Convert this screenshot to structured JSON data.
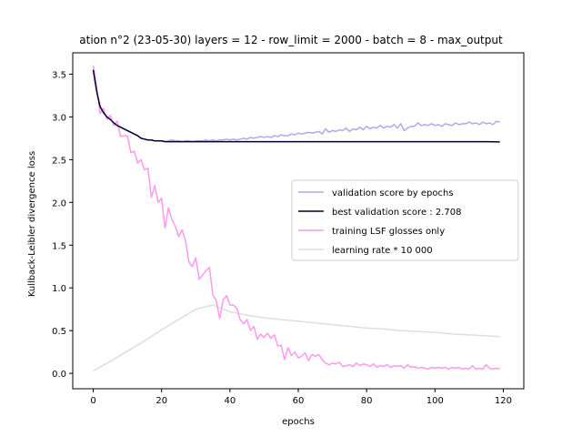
{
  "chart_data": {
    "type": "line",
    "title": "ation n°2 (23-05-30) layers = 12 - row_limit = 2000 - batch = 8 - max_output",
    "xlabel": "epochs",
    "ylabel": "Kullback-Leibler divergence loss",
    "xlim": [
      -6,
      126
    ],
    "ylim": [
      -0.18,
      3.75
    ],
    "xticks": [
      0,
      20,
      40,
      60,
      80,
      100,
      120
    ],
    "yticks": [
      0.0,
      0.5,
      1.0,
      1.5,
      2.0,
      2.5,
      3.0,
      3.5
    ],
    "xtick_labels": [
      "0",
      "20",
      "40",
      "60",
      "80",
      "100",
      "120"
    ],
    "ytick_labels": [
      "0.0",
      "0.5",
      "1.0",
      "1.5",
      "2.0",
      "2.5",
      "3.0",
      "3.5"
    ],
    "grid": false,
    "legend_position": "center-right",
    "series": [
      {
        "name": "validation score by epochs",
        "color": "#aaaaee",
        "x": [
          0,
          1,
          2,
          3,
          4,
          5,
          6,
          7,
          8,
          9,
          10,
          11,
          12,
          13,
          14,
          15,
          16,
          17,
          18,
          19,
          20,
          21,
          22,
          23,
          24,
          25,
          26,
          27,
          28,
          29,
          30,
          31,
          32,
          33,
          34,
          35,
          36,
          37,
          38,
          39,
          40,
          41,
          42,
          43,
          44,
          45,
          46,
          47,
          48,
          49,
          50,
          51,
          52,
          53,
          54,
          55,
          56,
          57,
          58,
          59,
          60,
          61,
          62,
          63,
          64,
          65,
          66,
          67,
          68,
          69,
          70,
          71,
          72,
          73,
          74,
          75,
          76,
          77,
          78,
          79,
          80,
          81,
          82,
          83,
          84,
          85,
          86,
          87,
          88,
          89,
          90,
          91,
          92,
          93,
          94,
          95,
          96,
          97,
          98,
          99,
          100,
          101,
          102,
          103,
          104,
          105,
          106,
          107,
          108,
          109,
          110,
          111,
          112,
          113,
          114,
          115,
          116,
          117,
          118,
          119
        ],
        "y": [
          3.55,
          3.3,
          3.12,
          3.05,
          3.0,
          2.97,
          2.93,
          2.9,
          2.88,
          2.86,
          2.84,
          2.82,
          2.8,
          2.78,
          2.75,
          2.74,
          2.73,
          2.73,
          2.72,
          2.72,
          2.72,
          2.71,
          2.72,
          2.73,
          2.72,
          2.72,
          2.71,
          2.72,
          2.72,
          2.71,
          2.72,
          2.72,
          2.72,
          2.73,
          2.72,
          2.73,
          2.72,
          2.73,
          2.73,
          2.74,
          2.73,
          2.74,
          2.73,
          2.74,
          2.75,
          2.74,
          2.76,
          2.75,
          2.76,
          2.77,
          2.76,
          2.77,
          2.76,
          2.78,
          2.77,
          2.79,
          2.78,
          2.78,
          2.8,
          2.79,
          2.81,
          2.8,
          2.81,
          2.82,
          2.81,
          2.82,
          2.83,
          2.8,
          2.86,
          2.82,
          2.84,
          2.83,
          2.85,
          2.84,
          2.87,
          2.83,
          2.86,
          2.85,
          2.88,
          2.85,
          2.89,
          2.86,
          2.88,
          2.87,
          2.9,
          2.87,
          2.89,
          2.88,
          2.91,
          2.87,
          2.92,
          2.84,
          2.87,
          2.89,
          2.89,
          2.93,
          2.9,
          2.91,
          2.9,
          2.92,
          2.9,
          2.91,
          2.89,
          2.92,
          2.91,
          2.9,
          2.93,
          2.91,
          2.92,
          2.92,
          2.94,
          2.92,
          2.93,
          2.91,
          2.94,
          2.92,
          2.93,
          2.91,
          2.95,
          2.94
        ]
      },
      {
        "name": "best validation score : 2.708",
        "color": "#000033",
        "x": [
          0,
          1,
          2,
          3,
          4,
          5,
          6,
          7,
          8,
          9,
          10,
          11,
          12,
          13,
          14,
          15,
          16,
          17,
          18,
          19,
          20,
          21,
          22,
          23,
          24,
          25,
          26,
          27,
          28,
          29,
          30,
          31,
          32,
          33,
          34,
          35,
          36,
          37,
          38,
          39,
          40,
          45,
          50,
          55,
          60,
          65,
          70,
          75,
          80,
          85,
          90,
          95,
          100,
          105,
          110,
          115,
          119
        ],
        "y": [
          3.55,
          3.3,
          3.12,
          3.05,
          3.0,
          2.97,
          2.93,
          2.9,
          2.88,
          2.86,
          2.84,
          2.82,
          2.8,
          2.78,
          2.75,
          2.74,
          2.73,
          2.73,
          2.72,
          2.72,
          2.72,
          2.71,
          2.71,
          2.71,
          2.71,
          2.71,
          2.71,
          2.71,
          2.71,
          2.71,
          2.71,
          2.71,
          2.71,
          2.71,
          2.71,
          2.71,
          2.71,
          2.71,
          2.71,
          2.71,
          2.71,
          2.71,
          2.71,
          2.71,
          2.71,
          2.71,
          2.71,
          2.71,
          2.71,
          2.71,
          2.71,
          2.71,
          2.71,
          2.71,
          2.71,
          2.71,
          2.708
        ]
      },
      {
        "name": "training LSF glosses only",
        "color": "#ff99ee",
        "x": [
          0,
          1,
          2,
          3,
          4,
          5,
          6,
          7,
          8,
          9,
          10,
          11,
          12,
          13,
          14,
          15,
          16,
          17,
          18,
          19,
          20,
          21,
          22,
          23,
          24,
          25,
          26,
          27,
          28,
          29,
          30,
          31,
          32,
          33,
          34,
          35,
          36,
          37,
          38,
          39,
          40,
          41,
          42,
          43,
          44,
          45,
          46,
          47,
          48,
          49,
          50,
          51,
          52,
          53,
          54,
          55,
          56,
          57,
          58,
          59,
          60,
          61,
          62,
          63,
          64,
          65,
          66,
          67,
          68,
          69,
          70,
          71,
          72,
          73,
          74,
          75,
          76,
          77,
          78,
          79,
          80,
          81,
          82,
          83,
          84,
          85,
          86,
          87,
          88,
          89,
          90,
          91,
          92,
          93,
          94,
          95,
          96,
          97,
          98,
          99,
          100,
          101,
          102,
          103,
          104,
          105,
          106,
          107,
          108,
          109,
          110,
          111,
          112,
          113,
          114,
          115,
          116,
          117,
          118,
          119
        ],
        "y": [
          3.6,
          3.35,
          3.04,
          3.1,
          2.97,
          3.02,
          2.9,
          2.95,
          2.77,
          2.78,
          2.78,
          2.58,
          2.6,
          2.46,
          2.5,
          2.38,
          2.4,
          2.06,
          2.2,
          2.0,
          2.05,
          1.7,
          1.94,
          1.8,
          1.72,
          1.6,
          1.68,
          1.55,
          1.3,
          1.25,
          1.35,
          1.1,
          1.15,
          1.2,
          1.24,
          0.92,
          0.85,
          0.64,
          0.86,
          0.91,
          0.8,
          0.8,
          0.76,
          0.63,
          0.58,
          0.63,
          0.5,
          0.55,
          0.4,
          0.46,
          0.42,
          0.47,
          0.41,
          0.45,
          0.32,
          0.33,
          0.16,
          0.3,
          0.21,
          0.25,
          0.18,
          0.2,
          0.24,
          0.15,
          0.22,
          0.2,
          0.22,
          0.16,
          0.12,
          0.1,
          0.12,
          0.11,
          0.13,
          0.08,
          0.09,
          0.1,
          0.08,
          0.12,
          0.09,
          0.11,
          0.1,
          0.08,
          0.11,
          0.07,
          0.09,
          0.08,
          0.1,
          0.07,
          0.09,
          0.08,
          0.09,
          0.06,
          0.1,
          0.07,
          0.08,
          0.06,
          0.07,
          0.06,
          0.05,
          0.07,
          0.06,
          0.07,
          0.06,
          0.07,
          0.05,
          0.07,
          0.06,
          0.07,
          0.05,
          0.06,
          0.05,
          0.09,
          0.05,
          0.06,
          0.05,
          0.1,
          0.06,
          0.05,
          0.06,
          0.05
        ]
      },
      {
        "name": "learning rate * 10 000",
        "color": "#dddddd",
        "x": [
          0,
          5,
          10,
          15,
          20,
          25,
          30,
          35,
          40,
          45,
          50,
          55,
          60,
          65,
          70,
          75,
          80,
          85,
          90,
          95,
          100,
          105,
          110,
          115,
          119
        ],
        "y": [
          0.03,
          0.14,
          0.26,
          0.38,
          0.51,
          0.63,
          0.75,
          0.8,
          0.72,
          0.68,
          0.65,
          0.63,
          0.61,
          0.59,
          0.57,
          0.55,
          0.53,
          0.52,
          0.5,
          0.49,
          0.48,
          0.46,
          0.45,
          0.44,
          0.43
        ]
      }
    ]
  }
}
